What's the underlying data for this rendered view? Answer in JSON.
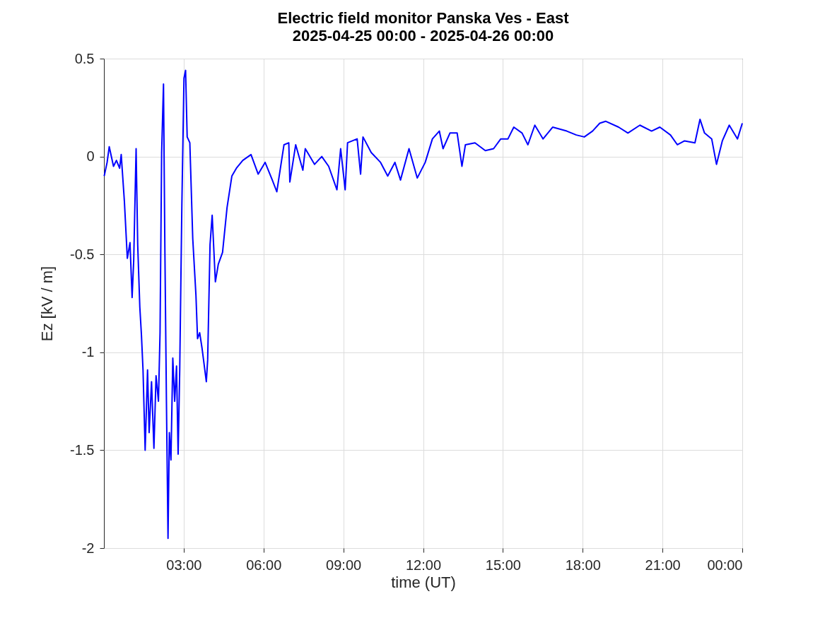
{
  "chart_data": {
    "type": "line",
    "title": "Electric field monitor Panska Ves - East",
    "subtitle": "2025-04-25 00:00 - 2025-04-26 00:00",
    "xlabel": "time (UT)",
    "ylabel": "Ez [kV / m]",
    "xlim": [
      0,
      24
    ],
    "ylim": [
      -2,
      0.5
    ],
    "xticks": [
      {
        "value": 3,
        "label": "03:00"
      },
      {
        "value": 6,
        "label": "06:00"
      },
      {
        "value": 9,
        "label": "09:00"
      },
      {
        "value": 12,
        "label": "12:00"
      },
      {
        "value": 15,
        "label": "15:00"
      },
      {
        "value": 18,
        "label": "18:00"
      },
      {
        "value": 21,
        "label": "21:00"
      },
      {
        "value": 24,
        "label": "00:00"
      }
    ],
    "yticks": [
      -2,
      -1.5,
      -1,
      -0.5,
      0,
      0.5
    ],
    "grid": true,
    "marker": "none",
    "line_style": "solid",
    "series": [
      {
        "color": "#0000ff",
        "x": [
          0.01,
          0.12,
          0.2,
          0.36,
          0.47,
          0.59,
          0.65,
          0.77,
          0.88,
          0.98,
          1.06,
          1.12,
          1.21,
          1.27,
          1.35,
          1.41,
          1.47,
          1.55,
          1.64,
          1.7,
          1.79,
          1.88,
          1.96,
          2.05,
          2.11,
          2.17,
          2.24,
          2.29,
          2.35,
          2.41,
          2.46,
          2.52,
          2.59,
          2.66,
          2.73,
          2.79,
          2.85,
          2.93,
          3.01,
          3.07,
          3.13,
          3.23,
          3.34,
          3.46,
          3.52,
          3.6,
          3.69,
          3.85,
          3.9,
          3.99,
          4.07,
          4.19,
          4.3,
          4.46,
          4.63,
          4.81,
          4.98,
          5.22,
          5.53,
          5.8,
          6.06,
          6.33,
          6.5,
          6.77,
          6.95,
          6.99,
          7.21,
          7.48,
          7.57,
          7.92,
          8.19,
          8.45,
          8.76,
          8.9,
          9.07,
          9.16,
          9.52,
          9.65,
          9.74,
          10.05,
          10.4,
          10.67,
          10.94,
          11.15,
          11.47,
          11.78,
          12.08,
          12.35,
          12.61,
          12.75,
          13.01,
          13.28,
          13.46,
          13.59,
          13.95,
          14.34,
          14.65,
          14.92,
          15.19,
          15.41,
          15.72,
          15.94,
          16.2,
          16.51,
          16.87,
          17.4,
          17.76,
          18.06,
          18.37,
          18.64,
          18.86,
          19.35,
          19.7,
          20.15,
          20.59,
          20.9,
          21.3,
          21.56,
          21.83,
          22.22,
          22.41,
          22.58,
          22.85,
          23.03,
          23.25,
          23.51,
          23.82,
          24.0
        ],
        "values": [
          -0.1,
          -0.03,
          0.05,
          -0.05,
          -0.02,
          -0.06,
          0.01,
          -0.23,
          -0.52,
          -0.44,
          -0.72,
          -0.53,
          0.04,
          -0.45,
          -0.77,
          -0.91,
          -1.09,
          -1.5,
          -1.09,
          -1.41,
          -1.15,
          -1.49,
          -1.12,
          -1.25,
          -0.9,
          0.02,
          0.37,
          -0.45,
          -1.25,
          -1.95,
          -1.41,
          -1.55,
          -1.03,
          -1.25,
          -1.07,
          -1.52,
          -1.09,
          -0.25,
          0.4,
          0.44,
          0.1,
          0.07,
          -0.42,
          -0.71,
          -0.93,
          -0.9,
          -0.98,
          -1.15,
          -1.04,
          -0.45,
          -0.3,
          -0.64,
          -0.55,
          -0.49,
          -0.26,
          -0.1,
          -0.06,
          -0.02,
          0.01,
          -0.09,
          -0.03,
          -0.12,
          -0.18,
          0.06,
          0.07,
          -0.13,
          0.06,
          -0.07,
          0.04,
          -0.04,
          0.0,
          -0.05,
          -0.17,
          0.04,
          -0.17,
          0.07,
          0.09,
          -0.09,
          0.1,
          0.02,
          -0.03,
          -0.1,
          -0.03,
          -0.12,
          0.04,
          -0.11,
          -0.03,
          0.09,
          0.13,
          0.04,
          0.12,
          0.12,
          -0.05,
          0.06,
          0.07,
          0.03,
          0.04,
          0.09,
          0.09,
          0.15,
          0.12,
          0.06,
          0.16,
          0.09,
          0.15,
          0.13,
          0.11,
          0.1,
          0.13,
          0.17,
          0.18,
          0.15,
          0.12,
          0.16,
          0.13,
          0.15,
          0.11,
          0.06,
          0.08,
          0.07,
          0.19,
          0.12,
          0.09,
          -0.04,
          0.08,
          0.16,
          0.09,
          0.17
        ]
      }
    ]
  }
}
